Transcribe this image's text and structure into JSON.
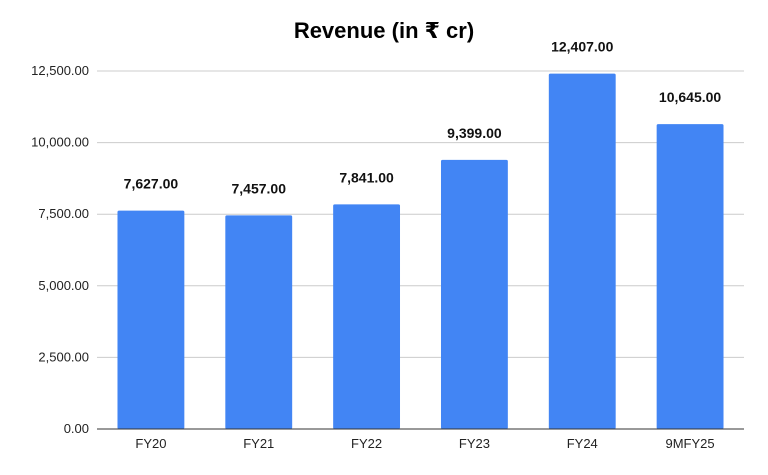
{
  "chart_data": {
    "type": "bar",
    "title": "Revenue (in ₹ cr)",
    "xlabel": "",
    "ylabel": "",
    "categories": [
      "FY20",
      "FY21",
      "FY22",
      "FY23",
      "FY24",
      "9MFY25"
    ],
    "values": [
      7627,
      7457,
      7841,
      9399,
      12407,
      10645
    ],
    "data_labels": [
      "7,627.00",
      "7,457.00",
      "7,841.00",
      "9,399.00",
      "12,407.00",
      "10,645.00"
    ],
    "ylim": [
      0,
      12500
    ],
    "yticks": [
      0,
      2500,
      5000,
      7500,
      10000,
      12500
    ],
    "ytick_labels": [
      "0.00",
      "2,500.00",
      "5,000.00",
      "7,500.00",
      "10,000.00",
      "12,500.00"
    ],
    "grid": true,
    "legend": "none",
    "colors": {
      "bar": "#4285f4",
      "grid": "#cccccc",
      "axis": "#333333"
    }
  }
}
